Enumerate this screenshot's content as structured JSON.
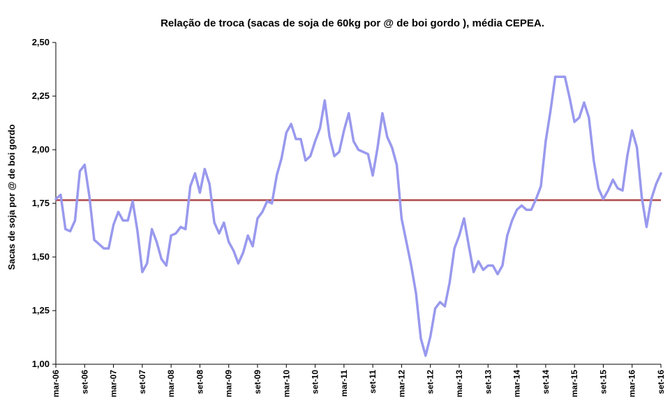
{
  "chart_data": {
    "type": "line",
    "title": "Relação de troca (sacas de soja de 60kg por @ de boi gordo ), média CEPEA.",
    "ylabel": "Sacas de soja  por @ de boi gordo",
    "ylim": [
      1.0,
      2.5
    ],
    "yticks": [
      "1,00",
      "1,25",
      "1,50",
      "1,75",
      "2,00",
      "2,25",
      "2,50"
    ],
    "xticks": [
      "mar-06",
      "set-06",
      "mar-07",
      "set-07",
      "mar-08",
      "set-08",
      "mar-09",
      "set-09",
      "mar-10",
      "set-10",
      "mar-11",
      "set-11",
      "mar-12",
      "set-12",
      "mar-13",
      "set-13",
      "mar-14",
      "set-14",
      "mar-15",
      "set-15",
      "mar-16",
      "set-16"
    ],
    "grid": false,
    "legend": "none",
    "series": [
      {
        "color": "#9999ee",
        "values": [
          1.77,
          1.79,
          1.63,
          1.62,
          1.67,
          1.9,
          1.93,
          1.78,
          1.58,
          1.56,
          1.54,
          1.54,
          1.65,
          1.71,
          1.67,
          1.67,
          1.76,
          1.62,
          1.43,
          1.47,
          1.63,
          1.57,
          1.49,
          1.46,
          1.6,
          1.61,
          1.64,
          1.63,
          1.83,
          1.89,
          1.8,
          1.91,
          1.84,
          1.66,
          1.61,
          1.66,
          1.57,
          1.53,
          1.47,
          1.52,
          1.6,
          1.55,
          1.68,
          1.71,
          1.76,
          1.75,
          1.88,
          1.96,
          2.08,
          2.12,
          2.05,
          2.05,
          1.95,
          1.97,
          2.04,
          2.1,
          2.23,
          2.06,
          1.97,
          1.99,
          2.09,
          2.17,
          2.04,
          2.0,
          1.99,
          1.98,
          1.88,
          2.01,
          2.17,
          2.06,
          2.01,
          1.93,
          1.68,
          1.57,
          1.46,
          1.33,
          1.12,
          1.04,
          1.13,
          1.26,
          1.29,
          1.27,
          1.38,
          1.54,
          1.6,
          1.68,
          1.55,
          1.43,
          1.48,
          1.44,
          1.46,
          1.46,
          1.42,
          1.46,
          1.6,
          1.67,
          1.72,
          1.74,
          1.72,
          1.72,
          1.77,
          1.83,
          2.04,
          2.18,
          2.34,
          2.34,
          2.34,
          2.24,
          2.13,
          2.15,
          2.22,
          2.15,
          1.95,
          1.82,
          1.77,
          1.81,
          1.86,
          1.82,
          1.81,
          1.97,
          2.09,
          2.01,
          1.78,
          1.64,
          1.77,
          1.84,
          1.89
        ]
      },
      {
        "color": "#b04848",
        "values": [
          1.765,
          1.765
        ]
      }
    ]
  }
}
